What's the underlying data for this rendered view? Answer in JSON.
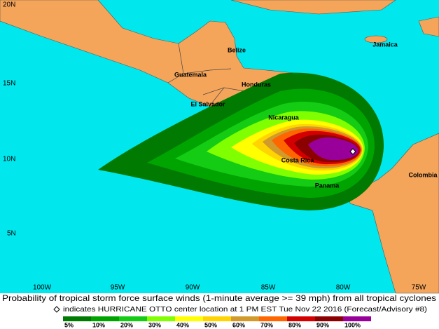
{
  "map": {
    "lat_labels": [
      "20N",
      "15N",
      "10N",
      "5N"
    ],
    "lon_labels": [
      "100W",
      "95W",
      "90W",
      "85W",
      "80W",
      "75W"
    ],
    "places": [
      "Belize",
      "Jamaica",
      "Guatemala",
      "Honduras",
      "El Salvador",
      "Nicaragua",
      "Costa Rica",
      "Panama",
      "Colombia"
    ]
  },
  "caption": {
    "title": "Probability of tropical storm force surface winds (1-minute average >= 39 mph) from all tropical cyclones",
    "note": "indicates HURRICANE OTTO center location at 1 PM EST Tue Nov 22 2016 (Forecast/Advisory #8)"
  },
  "legend": [
    {
      "label": "5%",
      "color": "#007a00"
    },
    {
      "label": "10%",
      "color": "#00a400"
    },
    {
      "label": "20%",
      "color": "#14cc14"
    },
    {
      "label": "30%",
      "color": "#80ff00"
    },
    {
      "label": "40%",
      "color": "#ffff00"
    },
    {
      "label": "50%",
      "color": "#ffd400"
    },
    {
      "label": "60%",
      "color": "#d29a2a"
    },
    {
      "label": "70%",
      "color": "#ff6600"
    },
    {
      "label": "80%",
      "color": "#d40000"
    },
    {
      "label": "90%",
      "color": "#8b0000"
    },
    {
      "label": "100%",
      "color": "#990099"
    }
  ]
}
